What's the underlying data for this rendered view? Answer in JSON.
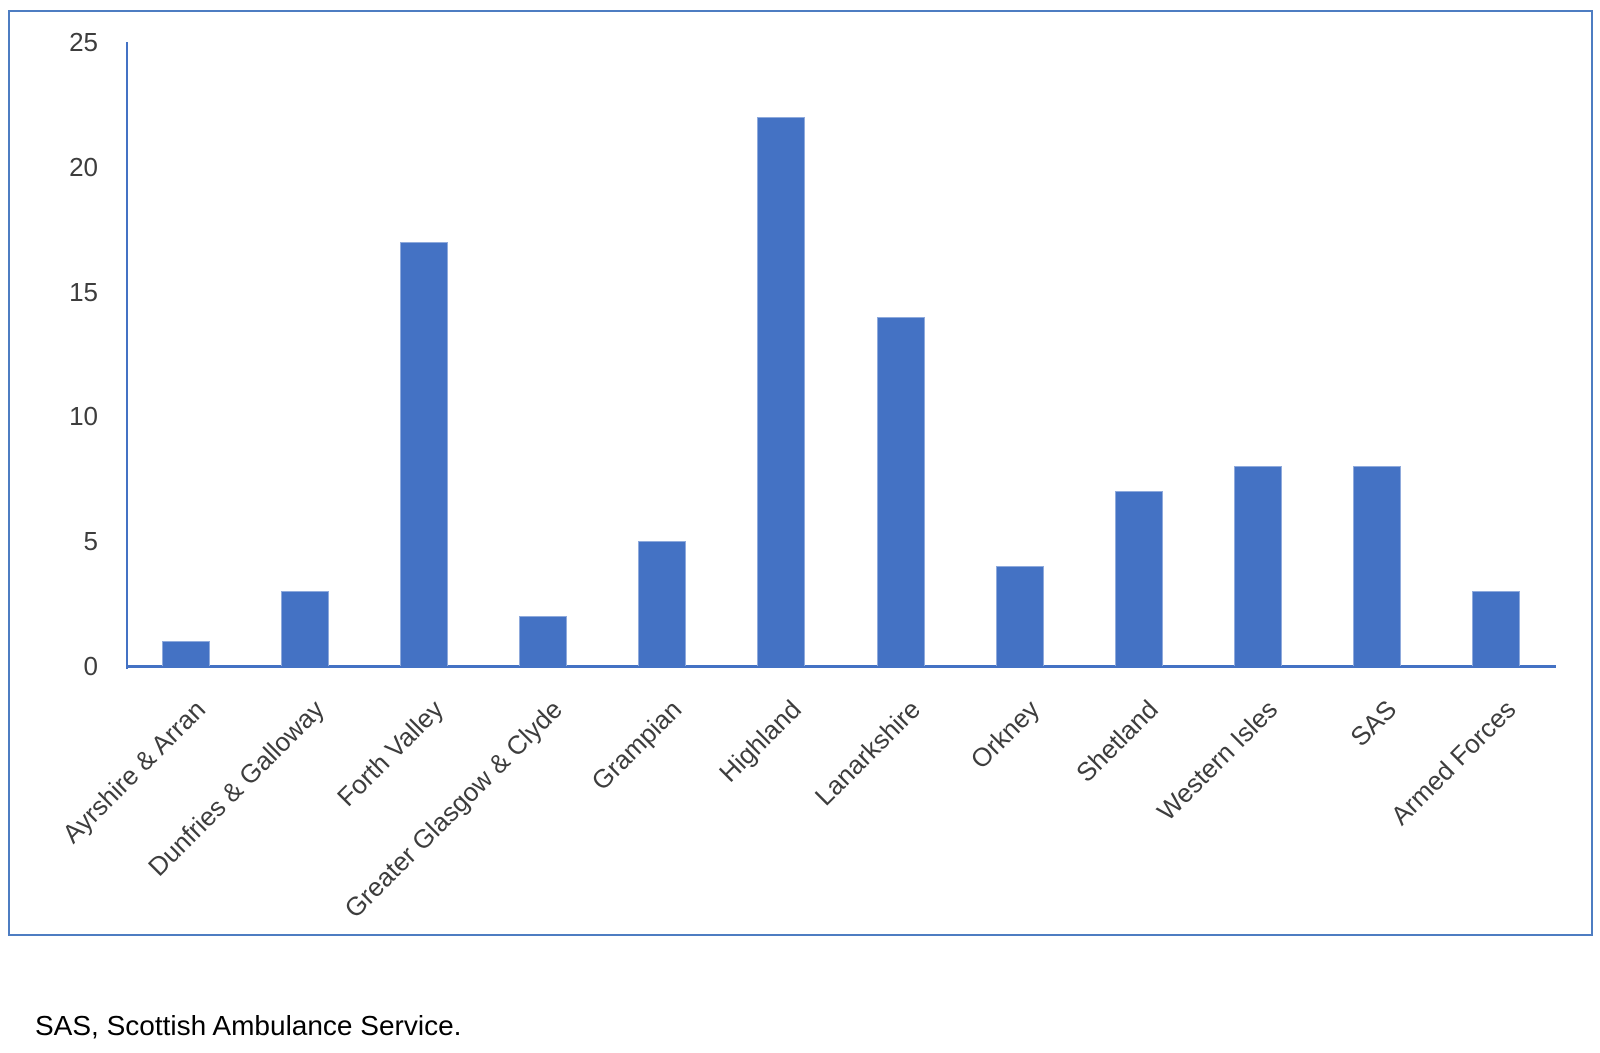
{
  "figure": {
    "footnote": "SAS, Scottish Ambulance Service."
  },
  "chart_data": {
    "type": "bar",
    "title": "",
    "xlabel": "",
    "ylabel": "",
    "categories": [
      "Ayrshire & Arran",
      "Dunfries & Galloway",
      "Forth Valley",
      "Greater Glasgow & Clyde",
      "Grampian",
      "Highland",
      "Lanarkshire",
      "Orkney",
      "Shetland",
      "Western Isles",
      "SAS",
      "Armed Forces"
    ],
    "values": [
      1,
      3,
      17,
      2,
      5,
      22,
      14,
      4,
      7,
      8,
      8,
      3
    ],
    "ylim": [
      0,
      25
    ],
    "yticks": [
      0,
      5,
      10,
      15,
      20,
      25
    ],
    "grid": false,
    "legend_position": "none",
    "x_label_rotation_deg": 45,
    "colors": {
      "bar_fill": "#4472C4",
      "bar_edge": "#8FAADC",
      "axis_line": "#4472C4",
      "frame_border": "#4E7DC2",
      "tick_text": "#3D3D3D"
    }
  }
}
